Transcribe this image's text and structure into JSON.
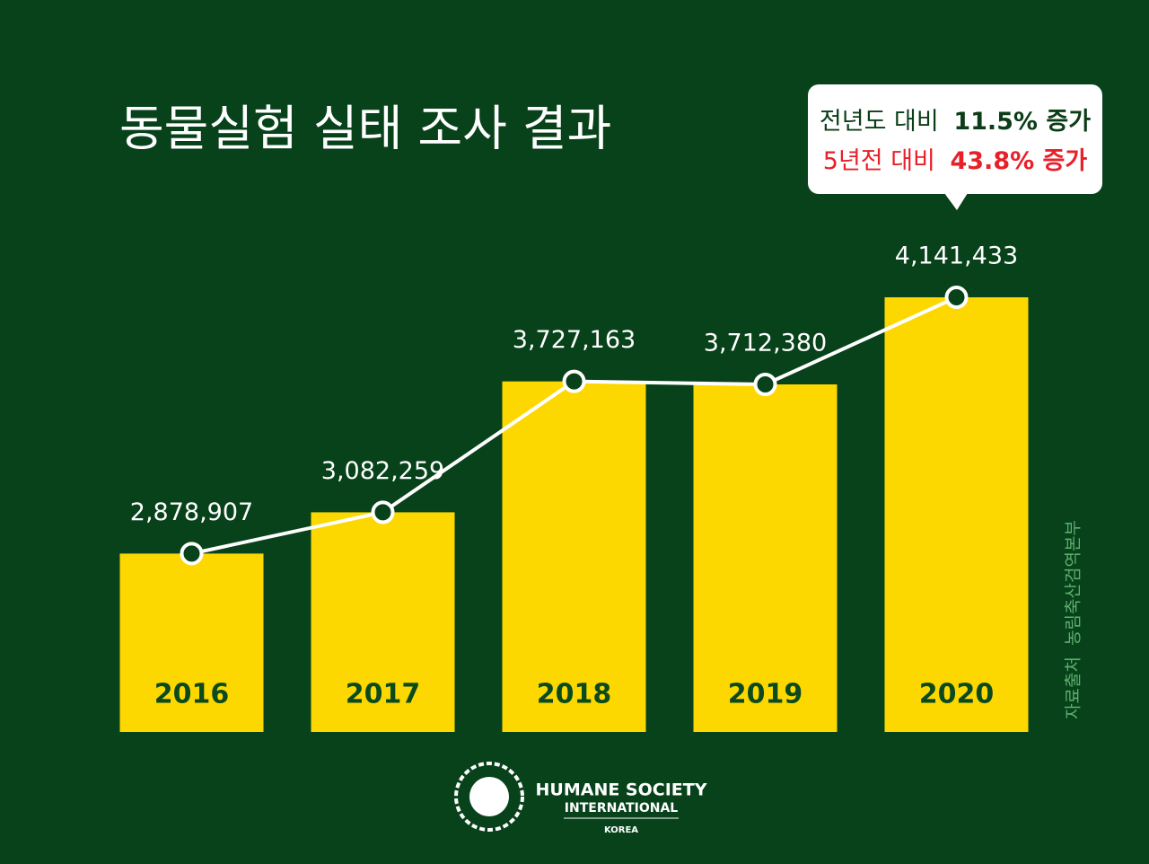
{
  "chart_data": {
    "type": "bar",
    "title": "동물실험 실태 조사 결과",
    "categories": [
      "2016",
      "2017",
      "2018",
      "2019",
      "2020"
    ],
    "values": [
      2878907,
      3082259,
      3727163,
      3712380,
      4141433
    ],
    "value_labels": [
      "2,878,907",
      "3,082,259",
      "3,727,163",
      "3,712,380",
      "4,141,433"
    ],
    "color": "#fdd800",
    "line_overlay": true,
    "line_color": "#ffffff",
    "ylim": [
      2000000,
      4500000
    ],
    "callout": {
      "line1": [
        "전년도 대비",
        "11.5% 증가"
      ],
      "line2": [
        "5년전 대비",
        "43.8% 증가"
      ]
    },
    "source": "자료출처  농림축산검역본부"
  },
  "logo": {
    "line1": "HUMANE SOCIETY",
    "line2": "INTERNATIONAL",
    "line3": "KOREA"
  }
}
